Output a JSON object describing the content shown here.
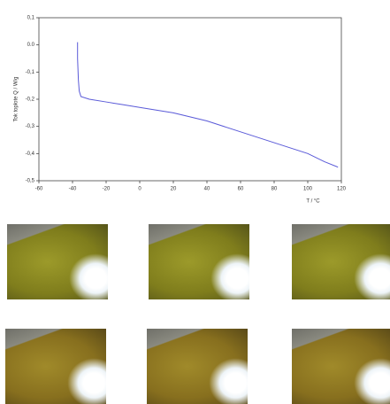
{
  "chart_data": {
    "type": "line",
    "y_label": "Tok toplote Q / W/g",
    "x_label": "T / °C",
    "x": [
      -37,
      -37,
      -36.5,
      -36,
      -35,
      -30,
      -20,
      -10,
      0,
      20,
      40,
      60,
      80,
      100,
      110,
      118
    ],
    "series": [
      {
        "color": "#5a5ad8",
        "values": [
          0.01,
          -0.05,
          -0.13,
          -0.17,
          -0.19,
          -0.2,
          -0.21,
          -0.22,
          -0.23,
          -0.25,
          -0.28,
          -0.32,
          -0.36,
          -0.4,
          -0.43,
          -0.45
        ]
      }
    ],
    "xlim": [
      -60,
      120
    ],
    "ylim": [
      -0.5,
      0.1
    ],
    "xticks": [
      -60,
      -40,
      -20,
      0,
      20,
      40,
      60,
      80,
      100,
      120
    ],
    "yticks": [
      {
        "value": 0.1,
        "label": "0,1"
      },
      {
        "value": 0,
        "label": "0.0"
      },
      {
        "value": -0.1,
        "label": "-0,1"
      },
      {
        "value": -0.2,
        "label": "-0,2"
      },
      {
        "value": -0.3,
        "label": "-0,3"
      },
      {
        "value": -0.4,
        "label": "-0,4"
      },
      {
        "value": -0.5,
        "label": "-0,5"
      }
    ]
  }
}
